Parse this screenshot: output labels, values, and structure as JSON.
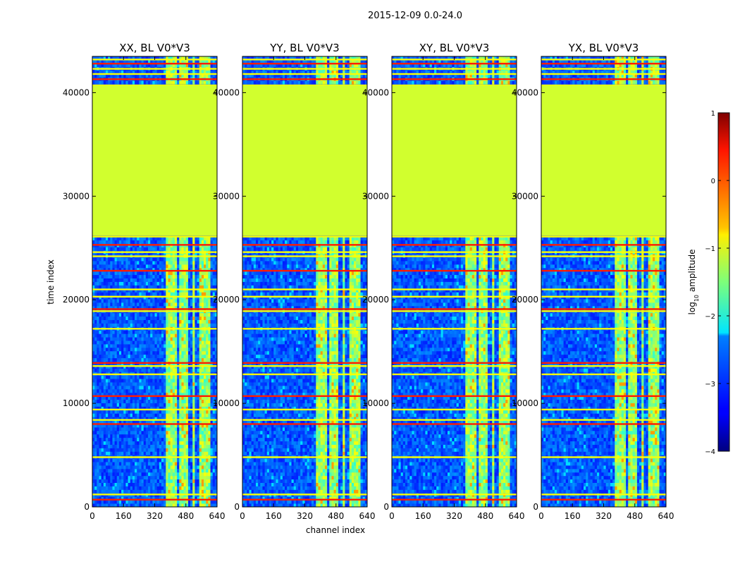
{
  "figure": {
    "suptitle": "2015-12-09 0.0-24.0",
    "xlabel": "channel index",
    "ylabel": "time index"
  },
  "chart_data": {
    "type": "heatmap",
    "x_axis": {
      "label": "channel index",
      "range": [
        0,
        640
      ],
      "ticks": [
        0,
        160,
        320,
        480,
        640
      ],
      "tick_labels": [
        "0",
        "160",
        "320",
        "480",
        "640"
      ]
    },
    "y_axis": {
      "label": "time index",
      "range": [
        0,
        43500
      ],
      "ticks": [
        0,
        10000,
        20000,
        30000,
        40000
      ],
      "tick_labels": [
        "0",
        "10000",
        "20000",
        "30000",
        "40000"
      ]
    },
    "panels": [
      {
        "title": "XX, BL V0*V3",
        "polarization": "XX"
      },
      {
        "title": "YY, BL V0*V3",
        "polarization": "YY"
      },
      {
        "title": "XY, BL V0*V3",
        "polarization": "XY"
      },
      {
        "title": "YX, BL V0*V3",
        "polarization": "YX"
      }
    ],
    "colorbar": {
      "label": "log10 amplitude",
      "label_main": "log",
      "label_sub": "10",
      "label_rest": " amplitude",
      "range": [
        -4,
        1
      ],
      "ticks": [
        -4,
        -3,
        -2,
        -1,
        0,
        1
      ],
      "tick_labels": [
        "−4",
        "−3",
        "−2",
        "−1",
        "0",
        "1"
      ],
      "colormap": "jet"
    },
    "features": {
      "flagged_block_time_range": [
        26200,
        40700
      ],
      "flagged_block_value": -1.1,
      "background_value": -3.0,
      "bright_channel_range": [
        380,
        600
      ],
      "gap_channels": [
        440,
        500,
        540
      ],
      "rfi_rows": [
        700,
        1200,
        4800,
        8000,
        8400,
        9400,
        10700,
        12800,
        13600,
        13900,
        17200,
        18900,
        19100,
        20300,
        21000,
        22800,
        24200,
        24600,
        25300,
        26100,
        40700,
        41300,
        41800,
        42300,
        42800,
        43200
      ]
    },
    "colors": {
      "jet_low": "#00007f",
      "jet_high": "#7f0000",
      "flag": "#99ff55"
    }
  }
}
